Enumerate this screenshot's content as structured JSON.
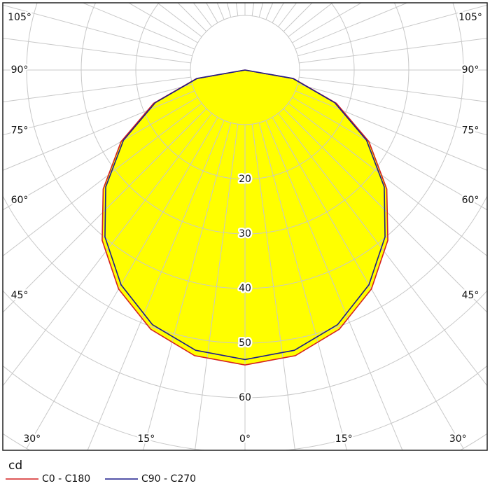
{
  "chart_data": {
    "type": "polar",
    "unit_label": "cd",
    "angles": [
      -90,
      -80,
      -70,
      -60,
      -50,
      -40,
      -30,
      -20,
      -10,
      0,
      10,
      20,
      30,
      40,
      50,
      60,
      70,
      80,
      90
    ],
    "series": [
      {
        "name": "C0 - C180",
        "color": "#d42020",
        "fill": "#ffff00",
        "values": [
          0,
          9.0,
          17.8,
          26.2,
          33.9,
          40.7,
          46.3,
          50.5,
          53.1,
          54,
          53.1,
          50.5,
          46.3,
          40.7,
          33.9,
          26.2,
          17.8,
          9.0,
          0
        ]
      },
      {
        "name": "C90 - C270",
        "color": "#1c1c8c",
        "values": [
          0,
          8.9,
          17.5,
          25.7,
          33.3,
          39.9,
          45.4,
          49.6,
          52.1,
          53,
          52.1,
          49.6,
          45.4,
          39.9,
          33.3,
          25.7,
          17.5,
          8.9,
          0
        ]
      }
    ],
    "rgrid": [
      10,
      20,
      30,
      40,
      50,
      60,
      70,
      80
    ],
    "rticks": [
      20,
      30,
      40,
      50,
      60
    ],
    "angle_grid_step": 7.5,
    "angle_ticks": [
      {
        "value": -105,
        "label": "105°"
      },
      {
        "value": -90,
        "label": "90°"
      },
      {
        "value": -75,
        "label": "75°"
      },
      {
        "value": -60,
        "label": "60°"
      },
      {
        "value": -45,
        "label": "45°"
      },
      {
        "value": -30,
        "label": "30°"
      },
      {
        "value": -15,
        "label": "15°"
      },
      {
        "value": 0,
        "label": "0°"
      },
      {
        "value": 15,
        "label": "15°"
      },
      {
        "value": 30,
        "label": "30°"
      },
      {
        "value": 45,
        "label": "45°"
      },
      {
        "value": 60,
        "label": "60°"
      },
      {
        "value": 75,
        "label": "75°"
      },
      {
        "value": 90,
        "label": "90°"
      },
      {
        "value": 105,
        "label": "105°"
      }
    ]
  }
}
